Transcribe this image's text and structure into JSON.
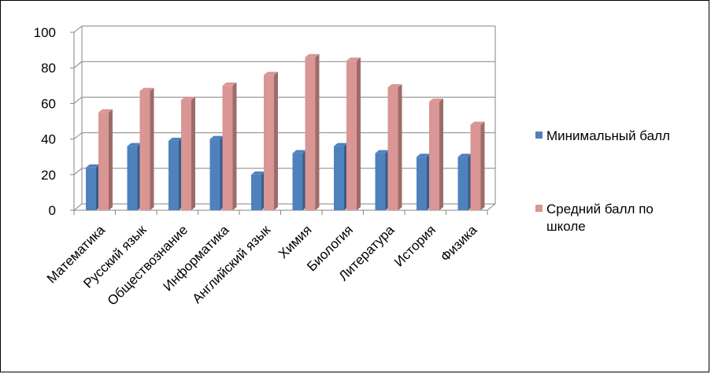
{
  "chart_data": {
    "type": "bar",
    "categories": [
      "Математика",
      "Русский язык",
      "Обществознание",
      "Информатика",
      "Английский язык",
      "Химия",
      "Биология",
      "Литература",
      "История",
      "Физика"
    ],
    "series": [
      {
        "name": "Минимальный балл",
        "values": [
          24,
          36,
          39,
          40,
          20,
          32,
          36,
          32,
          30,
          30
        ],
        "color": "#4F81BD"
      },
      {
        "name": "Средний балл по школе",
        "values": [
          55,
          67,
          62,
          70,
          76,
          86,
          84,
          69,
          61,
          48
        ],
        "color": "#D99694"
      }
    ],
    "ylim": [
      0,
      100
    ],
    "yticks": [
      0,
      20,
      40,
      60,
      80,
      100
    ],
    "grid": true,
    "legend_position": "right",
    "style": "3d-clustered-column"
  },
  "legend": {
    "item1": "Минимальный балл",
    "item2_line1": "Средний балл по",
    "item2_line2": "школе"
  }
}
